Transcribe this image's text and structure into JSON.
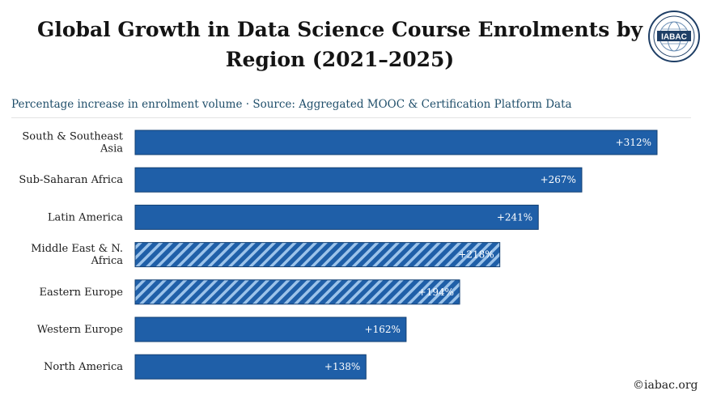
{
  "header": {
    "title": "Global Growth in Data Science Course Enrolments by Region (2021–2025)",
    "subtitle": "Percentage increase in enrolment volume · Source: Aggregated MOOC & Certification Platform Data"
  },
  "logo": {
    "text": "IABAC",
    "icon": "globe-seal-icon"
  },
  "footer": {
    "credit": "©iabac.org"
  },
  "colors": {
    "bar": "#1f5fa8",
    "bar_stroke": "#123f73",
    "stripe": "#9cc3ea"
  },
  "chart_data": {
    "type": "bar",
    "orientation": "horizontal",
    "categories": [
      "South & Southeast Asia",
      "Sub-Saharan Africa",
      "Latin America",
      "Middle East & N. Africa",
      "Eastern Europe",
      "Western Europe",
      "North America"
    ],
    "category_lines": [
      [
        "South & Southeast",
        "Asia"
      ],
      [
        "Sub-Saharan Africa"
      ],
      [
        "Latin America"
      ],
      [
        "Middle East & N.",
        "Africa"
      ],
      [
        "Eastern Europe"
      ],
      [
        "Western Europe"
      ],
      [
        "North America"
      ]
    ],
    "values": [
      312,
      267,
      241,
      218,
      194,
      162,
      138
    ],
    "value_labels": [
      "+312%",
      "+267%",
      "+241%",
      "+218%",
      "+194%",
      "+162%",
      "+138%"
    ],
    "hatched": [
      false,
      false,
      false,
      true,
      true,
      false,
      false
    ],
    "unit": "%",
    "grid": false,
    "xaxis_visible": false
  }
}
